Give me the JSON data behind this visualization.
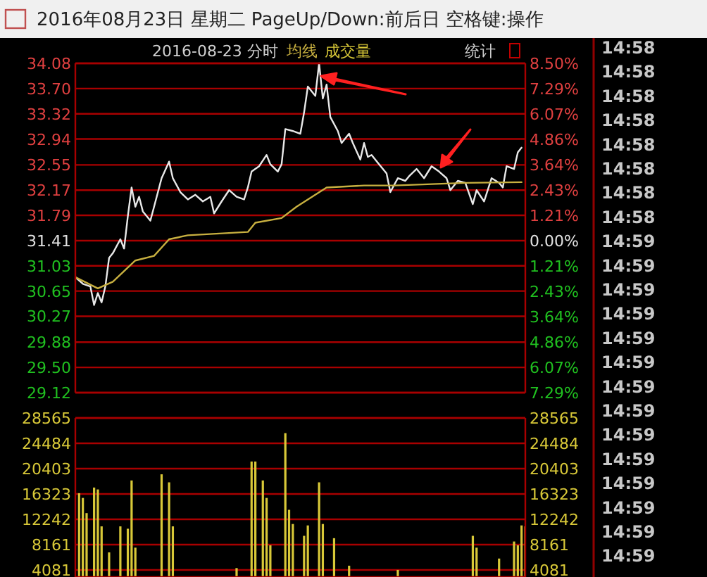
{
  "chart_data": [
    {
      "type": "line",
      "title": "2016年08月23日 星期二 PageUp/Down:前后日 空格键:操作",
      "subtitle": "2016-08-23 分时",
      "annotations": [
        "统计"
      ],
      "categories": [
        null,
        null,
        null,
        null,
        null,
        null,
        null,
        null,
        null,
        null,
        null,
        null,
        null,
        null,
        null,
        null,
        null,
        null,
        null,
        null,
        null,
        null,
        null,
        null,
        null,
        null,
        null,
        null,
        null,
        null,
        null,
        null,
        null,
        null,
        null,
        null,
        null,
        null,
        null,
        null,
        null,
        null,
        null,
        null,
        null,
        null,
        null,
        null,
        null,
        null,
        null,
        null,
        null,
        null,
        null,
        null,
        null,
        null,
        null,
        null,
        null,
        null,
        null,
        null,
        null,
        null,
        null,
        null,
        null,
        null,
        null,
        null,
        null,
        null,
        null,
        null,
        null,
        null,
        null,
        null,
        null,
        null,
        null,
        null,
        null,
        null,
        null,
        null,
        null,
        null,
        null,
        null,
        null,
        null,
        null,
        null,
        null,
        null,
        null,
        null,
        null,
        null,
        null,
        null,
        null,
        null,
        null,
        null,
        null,
        null,
        null,
        null,
        null,
        null,
        null,
        null,
        null,
        null,
        null,
        null,
        null
      ],
      "ylim": [
        29.12,
        34.08
      ],
      "yticks": [
        34.08,
        {
          "value": 33.7,
          "label": "33.70"
        },
        33.32,
        32.94,
        32.55,
        32.17,
        31.79,
        31.41,
        31.03,
        30.65,
        30.27,
        29.88,
        {
          "value": 29.5,
          "label": "29.50"
        },
        29.12
      ],
      "y2lim": [
        -7.29,
        8.5
      ],
      "y2ticks": [
        {
          "value": 8.5,
          "label": "8.50%"
        },
        {
          "value": 7.29,
          "label": "7.29%"
        },
        {
          "value": 6.07,
          "label": "6.07%"
        },
        {
          "value": 4.86,
          "label": "4.86%"
        },
        {
          "value": 3.64,
          "label": "3.64%"
        },
        {
          "value": 2.43,
          "label": "2.43%"
        },
        {
          "value": 1.21,
          "label": "1.21%"
        },
        {
          "value": 0,
          "label": "0.00%"
        },
        {
          "value": -1.21,
          "label": "1.21%"
        },
        {
          "value": -2.43,
          "label": "2.43%"
        },
        {
          "value": -3.64,
          "label": "3.64%"
        },
        {
          "value": -4.86,
          "label": "4.86%"
        },
        {
          "value": -6.07,
          "label": "6.07%"
        },
        {
          "value": -7.29,
          "label": "7.29%"
        }
      ],
      "grid": "y",
      "line_style": "solid",
      "series": [
        {
          "color": "#e8e8e8",
          "values": [
            30.86,
            null,
            30.76,
            null,
            30.72,
            30.44,
            30.62,
            30.48,
            30.72,
            31.15,
            31.22,
            null,
            31.43,
            31.29,
            31.78,
            32.21,
            31.92,
            32.07,
            31.85,
            null,
            31.71,
            31.92,
            null,
            32.35,
            null,
            32.6,
            32.35,
            null,
            32.14,
            null,
            32.03,
            null,
            32.1,
            null,
            32.0,
            null,
            32.07,
            31.82,
            null,
            32.0,
            null,
            32.17,
            null,
            32.07,
            null,
            32.03,
            32.21,
            32.45,
            null,
            32.53,
            null,
            32.7,
            32.56,
            null,
            32.45,
            32.56,
            33.09,
            null,
            33.06,
            null,
            33.02,
            33.34,
            33.73,
            null,
            33.59,
            34.08,
            33.55,
            33.76,
            33.27,
            null,
            33.06,
            32.88,
            null,
            33.02,
            32.88,
            null,
            32.63,
            32.88,
            32.67,
            32.7,
            null,
            32.56,
            null,
            32.42,
            32.14,
            null,
            32.35,
            null,
            32.31,
            32.38,
            null,
            32.49,
            null,
            32.35,
            null,
            32.53,
            null,
            32.45,
            null,
            32.35,
            32.17,
            null,
            32.31,
            null,
            32.28,
            null,
            31.96,
            32.17,
            null,
            32.0,
            null,
            32.35,
            null,
            32.28,
            32.21,
            32.53,
            null,
            32.49,
            32.74,
            32.81,
            null
          ]
        },
        {
          "name": "均线",
          "color": "#c8b040",
          "values": [
            30.86,
            null,
            null,
            null,
            null,
            null,
            30.69,
            null,
            null,
            null,
            30.79,
            null,
            null,
            null,
            null,
            null,
            31.11,
            null,
            null,
            null,
            null,
            31.18,
            null,
            null,
            null,
            31.43,
            null,
            null,
            null,
            null,
            31.49,
            null,
            null,
            null,
            null,
            null,
            null,
            null,
            null,
            null,
            null,
            null,
            null,
            null,
            null,
            null,
            31.54,
            null,
            31.68,
            null,
            null,
            null,
            null,
            null,
            null,
            31.75,
            null,
            null,
            null,
            31.92,
            null,
            null,
            null,
            null,
            null,
            null,
            null,
            32.21,
            null,
            null,
            null,
            null,
            null,
            null,
            null,
            null,
            null,
            32.24,
            null,
            null,
            null,
            null,
            null,
            null,
            null,
            32.24,
            null,
            null,
            null,
            null,
            null,
            null,
            null,
            null,
            null,
            null,
            null,
            null,
            null,
            null,
            null,
            null,
            null,
            null,
            32.28,
            null,
            null,
            null,
            null,
            null,
            null,
            null,
            null,
            null,
            null,
            null,
            null,
            null,
            null,
            32.29,
            null
          ]
        }
      ]
    },
    {
      "type": "bar",
      "categories": [
        null,
        null,
        null,
        null,
        null,
        null,
        null,
        null,
        null,
        null,
        null,
        null,
        null,
        null,
        null,
        null,
        null,
        null,
        null,
        null,
        null,
        null,
        null,
        null,
        null,
        null,
        null,
        null,
        null,
        null,
        null,
        null,
        null,
        null,
        null,
        null,
        null,
        null,
        null,
        null,
        null,
        null,
        null,
        null,
        null,
        null,
        null,
        null,
        null,
        null,
        null,
        null,
        null,
        null,
        null,
        null,
        null,
        null,
        null,
        null,
        null,
        null,
        null,
        null,
        null,
        null,
        null,
        null,
        null,
        null,
        null,
        null,
        null,
        null,
        null,
        null,
        null,
        null,
        null,
        null,
        null,
        null,
        null,
        null,
        null,
        null,
        null,
        null,
        null,
        null,
        null,
        null,
        null,
        null,
        null,
        null,
        null,
        null,
        null,
        null,
        null,
        null,
        null,
        null,
        null,
        null,
        null,
        null,
        null,
        null,
        null,
        null,
        null,
        null,
        null,
        null,
        null,
        null,
        null,
        null,
        null
      ],
      "ylim": [
        2940,
        28565
      ],
      "yticks": [
        28565,
        24484,
        20403,
        16323,
        12242,
        8161,
        4081
      ],
      "y2lim": [
        2940,
        28565
      ],
      "y2ticks": [
        28565,
        24484,
        20403,
        16323,
        12242,
        8161,
        4081
      ],
      "grid": "y",
      "series": [
        {
          "name": "成交量",
          "color": "#d8c838",
          "values": [
            null,
            16439,
            15681,
            13235,
            null,
            17354,
            17049,
            11099,
            null,
            6905,
            null,
            null,
            11099,
            null,
            10719,
            18498,
            7668,
            null,
            null,
            null,
            null,
            null,
            null,
            19489,
            null,
            18193,
            11099,
            null,
            null,
            null,
            null,
            null,
            null,
            null,
            null,
            null,
            null,
            null,
            null,
            null,
            null,
            null,
            null,
            4381,
            null,
            null,
            null,
            21548,
            21548,
            null,
            18498,
            15681,
            8049,
            null,
            null,
            null,
            26125,
            13767,
            11480,
            null,
            null,
            9575,
            11251,
            null,
            null,
            18193,
            11480,
            null,
            null,
            9194,
            null,
            null,
            null,
            4761,
            null,
            null,
            null,
            null,
            null,
            null,
            null,
            null,
            null,
            null,
            null,
            null,
            4081,
            null,
            null,
            null,
            null,
            null,
            null,
            null,
            null,
            null,
            null,
            null,
            null,
            null,
            null,
            null,
            null,
            null,
            null,
            null,
            9575,
            7668,
            null,
            null,
            null,
            null,
            null,
            5914,
            null,
            null,
            null,
            8659,
            8049,
            11251,
            11099
          ]
        }
      ]
    },
    {
      "type": "other",
      "annotations": [
        "14:58",
        "14:58",
        "14:58",
        "14:58",
        "14:58",
        "14:58",
        "14:58",
        "14:58",
        "14:59",
        "14:59",
        "14:59",
        "14:59",
        "14:59",
        "14:59",
        "14:59",
        "14:59",
        "14:59",
        "14:59",
        "14:59",
        "14:59",
        "14:59",
        "14:59"
      ]
    }
  ]
}
